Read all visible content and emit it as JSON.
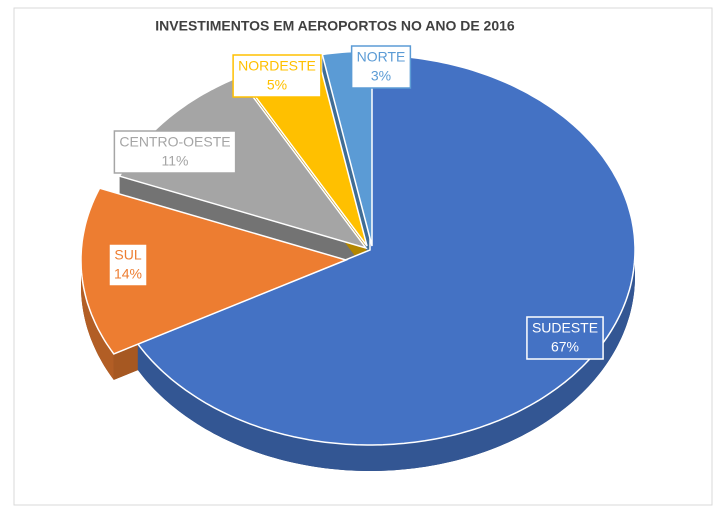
{
  "chart_data": {
    "type": "pie",
    "title": "INVESTIMENTOS EM AEROPORTOS NO ANO DE 2016",
    "categories": [
      "SUDESTE",
      "SUL",
      "CENTRO-OESTE",
      "NORDESTE",
      "NORTE"
    ],
    "values": [
      67,
      14,
      11,
      5,
      3
    ],
    "value_labels": [
      "67%",
      "14%",
      "11%",
      "5%",
      "3%"
    ],
    "colors": [
      "#4472c4",
      "#ed7d31",
      "#a5a5a5",
      "#ffc000",
      "#5b9bd5"
    ]
  }
}
